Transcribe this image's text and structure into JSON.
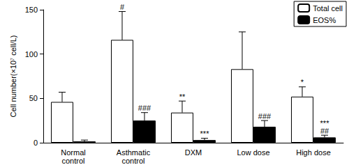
{
  "chart_data": {
    "type": "bar",
    "y_label": "Cell number(×10⁷ cell/L)",
    "categories": [
      "Normal\ncontrol",
      "Asthmatic\ncontrol",
      "DXM",
      "Low dose",
      "High dose"
    ],
    "series": [
      {
        "name": "Total cell",
        "color": "#ffffff",
        "values": [
          46,
          116,
          34,
          83,
          52
        ],
        "errors": [
          11,
          32,
          13,
          42,
          11
        ],
        "annotations": [
          null,
          [
            "#"
          ],
          [
            "**"
          ],
          null,
          [
            "*"
          ]
        ]
      },
      {
        "name": "EOS%",
        "color": "#000000",
        "values": [
          1.5,
          25,
          3,
          18,
          6
        ],
        "errors": [
          1.5,
          9,
          2,
          7,
          2.5
        ],
        "annotations": [
          null,
          [
            "###"
          ],
          [
            "***"
          ],
          [
            "###"
          ],
          [
            "***",
            "##"
          ]
        ]
      }
    ],
    "ylim": [
      0,
      150
    ],
    "yticks": [
      0,
      50,
      100,
      150
    ],
    "grid": false,
    "legend": "upper right"
  }
}
